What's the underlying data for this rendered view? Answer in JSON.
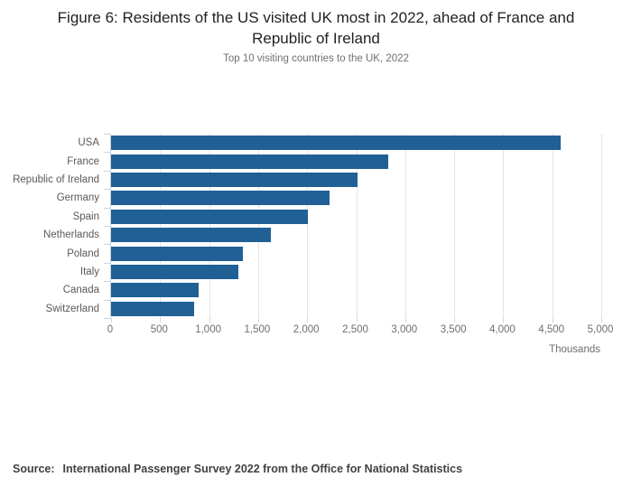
{
  "chart_data": {
    "type": "bar",
    "orientation": "horizontal",
    "title": "Figure 6: Residents of the US visited UK most in 2022, ahead of France and Republic of Ireland",
    "subtitle": "Top 10 visiting countries to the UK, 2022",
    "categories": [
      "USA",
      "France",
      "Republic of Ireland",
      "Germany",
      "Spain",
      "Netherlands",
      "Poland",
      "Italy",
      "Canada",
      "Switzerland"
    ],
    "values": [
      4590,
      2830,
      2510,
      2230,
      2010,
      1630,
      1340,
      1300,
      890,
      850
    ],
    "xlabel": "Thousands",
    "ylabel": "",
    "xlim": [
      0,
      5000
    ],
    "x_tick_labels": [
      "0",
      "500",
      "1,000",
      "1,500",
      "2,000",
      "2,500",
      "3,000",
      "3,500",
      "4,000",
      "4,500",
      "5,000"
    ],
    "x_tick_values": [
      0,
      500,
      1000,
      1500,
      2000,
      2500,
      3000,
      3500,
      4000,
      4500,
      5000
    ],
    "grid": "vertical-only",
    "legend": "none",
    "bar_color": "#206095",
    "gridline_color": "#e4e4e4",
    "axis_color": "#c9d6e4"
  },
  "source": {
    "label": "Source:",
    "text": "International Passenger Survey 2022 from the Office for National Statistics"
  }
}
